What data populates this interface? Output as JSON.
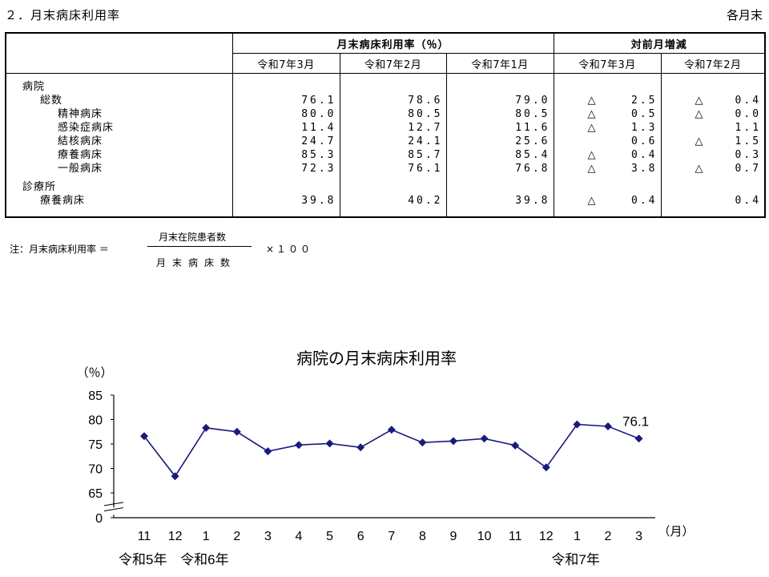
{
  "section_title": "２．月末病床利用率",
  "unit_note": "各月末",
  "table": {
    "header_group_1": "月末病床利用率（％）",
    "header_group_2": "対前月増減",
    "columns": [
      "令和7年3月",
      "令和7年2月",
      "令和7年1月",
      "令和7年3月",
      "令和7年2月"
    ],
    "sections": [
      {
        "heading": "病院",
        "rows": [
          {
            "label": "総数",
            "level": 1,
            "values": [
              "76.1",
              "78.6",
              "79.0"
            ],
            "diffs": [
              {
                "tri": "△",
                "v": "2.5"
              },
              {
                "tri": "△",
                "v": "0.4"
              }
            ]
          },
          {
            "label": "精神病床",
            "level": 2,
            "values": [
              "80.0",
              "80.5",
              "80.5"
            ],
            "diffs": [
              {
                "tri": "△",
                "v": "0.5"
              },
              {
                "tri": "△",
                "v": "0.0"
              }
            ]
          },
          {
            "label": "感染症病床",
            "level": 2,
            "values": [
              "11.4",
              "12.7",
              "11.6"
            ],
            "diffs": [
              {
                "tri": "△",
                "v": "1.3"
              },
              {
                "tri": "",
                "v": "1.1"
              }
            ]
          },
          {
            "label": "結核病床",
            "level": 2,
            "values": [
              "24.7",
              "24.1",
              "25.6"
            ],
            "diffs": [
              {
                "tri": "",
                "v": "0.6"
              },
              {
                "tri": "△",
                "v": "1.5"
              }
            ]
          },
          {
            "label": "療養病床",
            "level": 2,
            "values": [
              "85.3",
              "85.7",
              "85.4"
            ],
            "diffs": [
              {
                "tri": "△",
                "v": "0.4"
              },
              {
                "tri": "",
                "v": "0.3"
              }
            ]
          },
          {
            "label": "一般病床",
            "level": 2,
            "values": [
              "72.3",
              "76.1",
              "76.8"
            ],
            "diffs": [
              {
                "tri": "△",
                "v": "3.8"
              },
              {
                "tri": "△",
                "v": "0.7"
              }
            ]
          }
        ]
      },
      {
        "heading": "診療所",
        "rows": [
          {
            "label": "療養病床",
            "level": 1,
            "values": [
              "39.8",
              "40.2",
              "39.8"
            ],
            "diffs": [
              {
                "tri": "△",
                "v": "0.4"
              },
              {
                "tri": "",
                "v": "0.4"
              }
            ]
          }
        ]
      }
    ]
  },
  "formula": {
    "label": "注：月末病床利用率 ＝",
    "numerator": "月末在院患者数",
    "denominator": "月末病床数",
    "multiplier": "×１００"
  },
  "chart_data": {
    "type": "line",
    "title": "病院の月末病床利用率",
    "ylabel": "（％）",
    "xlabel": "（月）",
    "ylim": [
      60,
      85
    ],
    "yticks": [
      "85",
      "80",
      "75",
      "70",
      "65",
      "0"
    ],
    "axis_break": true,
    "x": [
      "11",
      "12",
      "1",
      "2",
      "3",
      "4",
      "5",
      "6",
      "7",
      "8",
      "9",
      "10",
      "11",
      "12",
      "1",
      "2",
      "3"
    ],
    "values": [
      76.6,
      68.4,
      78.3,
      77.5,
      73.5,
      74.8,
      75.1,
      74.3,
      77.9,
      75.3,
      75.6,
      76.1,
      74.7,
      70.2,
      79.0,
      78.6,
      76.1
    ],
    "era_labels": [
      {
        "text": "令和5年",
        "at_index": 0
      },
      {
        "text": "令和6年",
        "at_index": 2
      },
      {
        "text": "令和7年",
        "at_index": 14
      }
    ],
    "last_label": "76.1",
    "color": "#1a1a80",
    "grid": false
  }
}
